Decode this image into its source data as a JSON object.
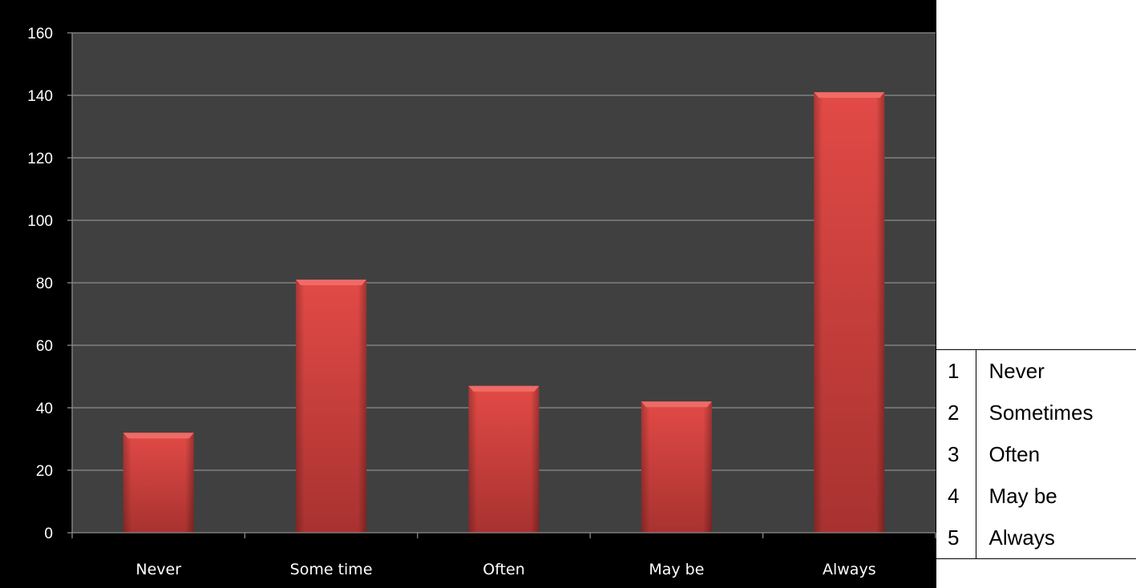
{
  "chart_data": {
    "type": "bar",
    "categories": [
      "Never",
      "Some time",
      "Often",
      "May be",
      "Always"
    ],
    "values": [
      32,
      81,
      47,
      42,
      141
    ],
    "ylim": [
      0,
      160
    ],
    "yticks": [
      0,
      20,
      40,
      60,
      80,
      100,
      120,
      140,
      160
    ],
    "grid": true,
    "title": "",
    "xlabel": "",
    "ylabel": "",
    "colors": {
      "background": "#000000",
      "plot_area": "#404040",
      "bar": "#d9413f",
      "gridline": "#8c8c8c",
      "text": "#ffffff"
    }
  },
  "legend_table": {
    "rows": [
      {
        "num": "1",
        "label": "Never"
      },
      {
        "num": "2",
        "label": "Sometimes"
      },
      {
        "num": "3",
        "label": "Often"
      },
      {
        "num": "4",
        "label": "May be"
      },
      {
        "num": "5",
        "label": "Always"
      }
    ]
  }
}
